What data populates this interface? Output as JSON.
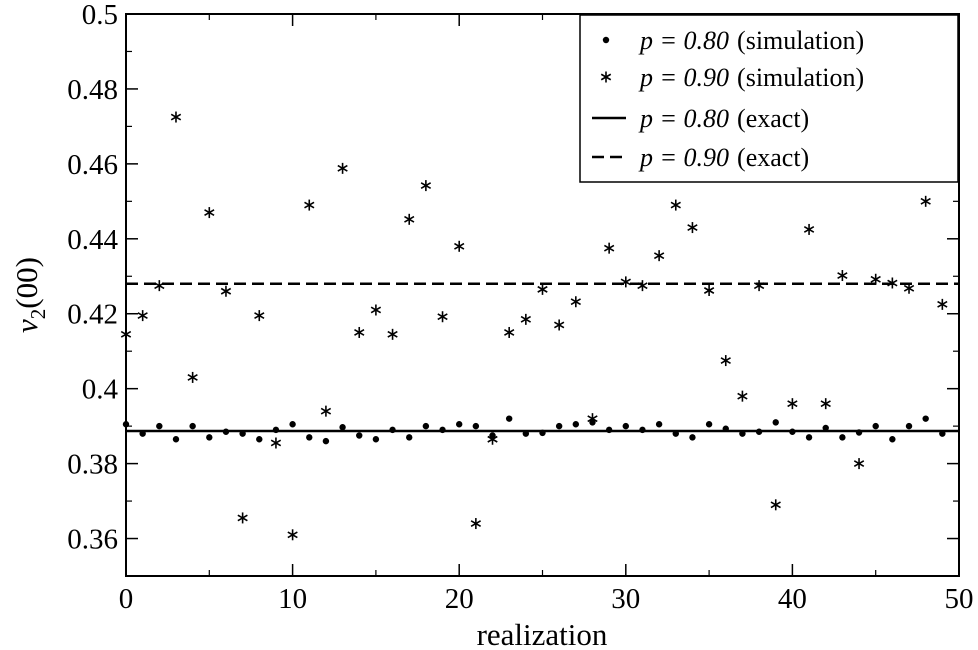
{
  "chart_data": {
    "type": "scatter",
    "xlabel": "realization",
    "ylabel": {
      "main": "v",
      "sub": "2",
      "suffix": "(00)"
    },
    "xlim": [
      0,
      50
    ],
    "ylim": [
      0.35,
      0.5
    ],
    "xticks": [
      0,
      10,
      20,
      30,
      40,
      50
    ],
    "xtick_labels": [
      "0",
      "10",
      "20",
      "30",
      "40",
      "50"
    ],
    "yticks": [
      0.36,
      0.38,
      0.4,
      0.42,
      0.44,
      0.46,
      0.48,
      0.5
    ],
    "ytick_labels": [
      "0.36",
      "0.38",
      "0.4",
      "0.42",
      "0.44",
      "0.46",
      "0.48",
      "0.5"
    ],
    "grid": false,
    "legend_position": "top-right",
    "series": [
      {
        "name": "p = 0.80 (simulation)",
        "legend_math": "p = 0.80",
        "legend_text": "(simulation)",
        "marker": "dot",
        "x": [
          0,
          1,
          2,
          3,
          4,
          5,
          6,
          7,
          8,
          9,
          10,
          11,
          12,
          13,
          14,
          15,
          16,
          17,
          18,
          19,
          20,
          21,
          22,
          23,
          24,
          25,
          26,
          27,
          28,
          29,
          30,
          31,
          32,
          33,
          34,
          35,
          36,
          37,
          38,
          39,
          40,
          41,
          42,
          43,
          44,
          45,
          46,
          47,
          48,
          49
        ],
        "y": [
          0.3905,
          0.388,
          0.39,
          0.3865,
          0.39,
          0.387,
          0.3885,
          0.388,
          0.3865,
          0.389,
          0.3905,
          0.387,
          0.386,
          0.3897,
          0.3875,
          0.3865,
          0.389,
          0.387,
          0.39,
          0.389,
          0.3905,
          0.39,
          0.3875,
          0.392,
          0.388,
          0.3882,
          0.39,
          0.3905,
          0.391,
          0.389,
          0.39,
          0.389,
          0.3905,
          0.388,
          0.387,
          0.3905,
          0.3893,
          0.388,
          0.3885,
          0.391,
          0.3885,
          0.387,
          0.3895,
          0.387,
          0.3883,
          0.39,
          0.3865,
          0.39,
          0.392,
          0.388
        ]
      },
      {
        "name": "p = 0.90 (simulation)",
        "legend_math": "p = 0.90",
        "legend_text": "(simulation)",
        "marker": "asterisk",
        "x": [
          0,
          1,
          2,
          3,
          4,
          5,
          6,
          7,
          8,
          9,
          10,
          11,
          12,
          13,
          14,
          15,
          16,
          17,
          18,
          19,
          20,
          21,
          22,
          23,
          24,
          25,
          26,
          27,
          28,
          29,
          30,
          31,
          32,
          33,
          34,
          35,
          36,
          37,
          38,
          39,
          40,
          41,
          42,
          43,
          44,
          45,
          46,
          47,
          48,
          49
        ],
        "y": [
          0.4145,
          0.4195,
          0.4275,
          0.4725,
          0.403,
          0.447,
          0.426,
          0.3655,
          0.4195,
          0.3855,
          0.361,
          0.449,
          0.394,
          0.4588,
          0.415,
          0.421,
          0.4145,
          0.4452,
          0.4542,
          0.4192,
          0.438,
          0.364,
          0.3865,
          0.415,
          0.4185,
          0.4265,
          0.417,
          0.4232,
          0.392,
          0.4375,
          0.4285,
          0.4275,
          0.4355,
          0.449,
          0.443,
          0.4262,
          0.4075,
          0.398,
          0.4275,
          0.369,
          0.396,
          0.4425,
          0.396,
          0.4302,
          0.38,
          0.4292,
          0.4282,
          0.4268,
          0.45,
          0.4225
        ]
      },
      {
        "name": "p = 0.80 (exact)",
        "legend_math": "p = 0.80",
        "legend_text": "(exact)",
        "marker": "solid-line",
        "value": 0.3887
      },
      {
        "name": "p = 0.90 (exact)",
        "legend_math": "p = 0.90",
        "legend_text": "(exact)",
        "marker": "dashed-line",
        "value": 0.428
      }
    ]
  }
}
